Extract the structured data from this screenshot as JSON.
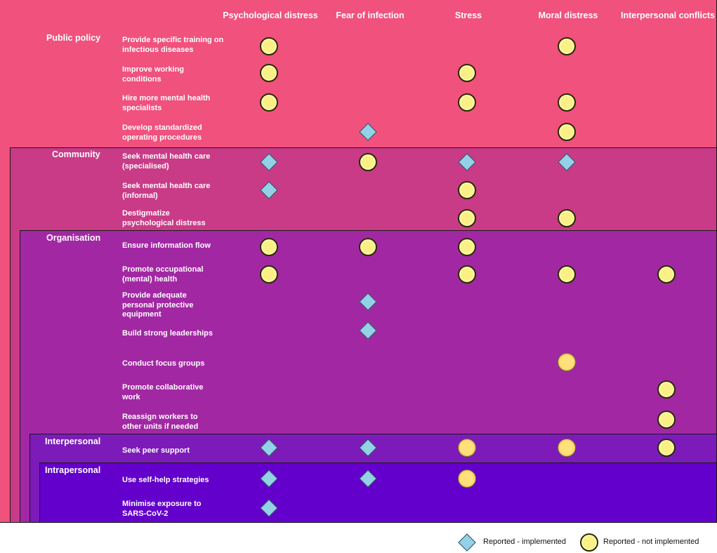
{
  "colors": {
    "public_policy": "#f0517d",
    "community": "#c93b86",
    "organisation": "#a228a3",
    "interpersonal": "#7c1bba",
    "intrapersonal": "#6300cc",
    "implemented": "#93d1e7",
    "not_implemented": "#faf086"
  },
  "columns": [
    "Psychological distress",
    "Fear of infection",
    "Stress",
    "Moral distress",
    "Interpersonal conflicts"
  ],
  "levels": [
    {
      "label": "Public policy"
    },
    {
      "label": "Community"
    },
    {
      "label": "Organisation"
    },
    {
      "label": "Interpersonal"
    },
    {
      "label": "Intrapersonal"
    }
  ],
  "strategies": [
    {
      "label": "Provide specific training on infectious diseases",
      "marks": [
        "c",
        "",
        "",
        "c",
        ""
      ]
    },
    {
      "label": "Improve working conditions",
      "marks": [
        "c",
        "",
        "c",
        "",
        ""
      ]
    },
    {
      "label": "Hire more mental health specialists",
      "marks": [
        "c",
        "",
        "c",
        "c",
        ""
      ]
    },
    {
      "label": "Develop standardized operating procedures",
      "marks": [
        "",
        "d",
        "",
        "c",
        ""
      ]
    },
    {
      "label": "Seek mental health care (specialised)",
      "marks": [
        "d",
        "c",
        "d",
        "d",
        ""
      ]
    },
    {
      "label": "Seek mental health care (informal)",
      "marks": [
        "d",
        "",
        "c",
        "",
        ""
      ]
    },
    {
      "label": "Destigmatize psychological distress",
      "marks": [
        "",
        "",
        "c",
        "c",
        ""
      ]
    },
    {
      "label": "Ensure information flow",
      "marks": [
        "c",
        "c",
        "c",
        "",
        ""
      ]
    },
    {
      "label": "Promote occupational (mental) health",
      "marks": [
        "c",
        "",
        "c",
        "c",
        "c"
      ]
    },
    {
      "label": "Provide adequate personal protective equipment",
      "marks": [
        "",
        "d",
        "",
        "",
        ""
      ]
    },
    {
      "label": "Build strong leaderships",
      "marks": [
        "",
        "d",
        "",
        "",
        ""
      ]
    },
    {
      "label": "Conduct focus groups",
      "marks": [
        "",
        "",
        "",
        "o",
        ""
      ]
    },
    {
      "label": "Promote collaborative work",
      "marks": [
        "",
        "",
        "",
        "",
        "c"
      ]
    },
    {
      "label": "Reassign workers to other units if needed",
      "marks": [
        "",
        "",
        "",
        "",
        "c"
      ]
    },
    {
      "label": "Seek peer support",
      "marks": [
        "d",
        "d",
        "o",
        "o",
        "c"
      ]
    },
    {
      "label": "Use self-help strategies",
      "marks": [
        "d",
        "d",
        "o",
        "",
        ""
      ]
    },
    {
      "label": "Minimise exposure to SARS-CoV-2",
      "marks": [
        "d",
        "",
        "",
        "",
        ""
      ]
    }
  ],
  "legend": {
    "implemented": "Reported - implemented",
    "not_implemented": "Reported - not implemented"
  }
}
